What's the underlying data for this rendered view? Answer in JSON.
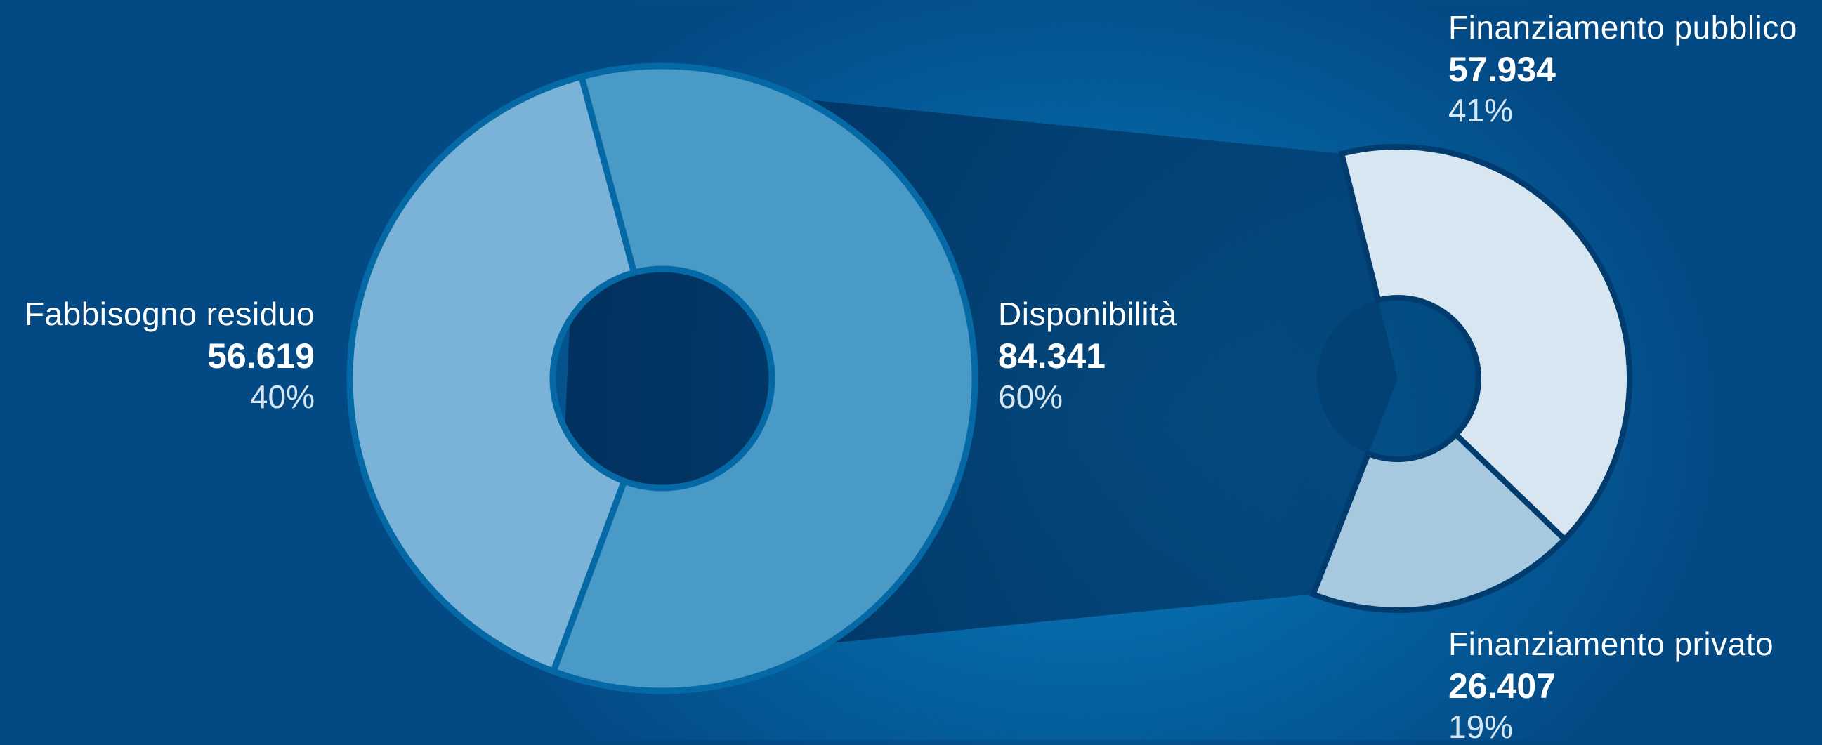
{
  "colors": {
    "residuo": "#7bb2d7",
    "disponibilita": "#4a9ac8",
    "pubblico": "#d7e6f0",
    "privato": "#a7c9e0",
    "hole": "#0569a5",
    "connector": "#023c6e"
  },
  "chart_data": [
    {
      "type": "pie",
      "series": [
        {
          "labels": [
            "Fabbisogno residuo",
            "Disponibilità"
          ],
          "values": [
            56619,
            84341
          ],
          "value_labels": [
            "56.619",
            "84.341"
          ],
          "percent_labels": [
            "40%",
            "60%"
          ]
        }
      ]
    },
    {
      "type": "pie",
      "series": [
        {
          "labels": [
            "Finanziamento pubblico",
            "Finanziamento privato"
          ],
          "values": [
            57934,
            26407
          ],
          "value_labels": [
            "57.934",
            "26.407"
          ],
          "percent_labels": [
            "41%",
            "19%"
          ]
        }
      ]
    }
  ]
}
